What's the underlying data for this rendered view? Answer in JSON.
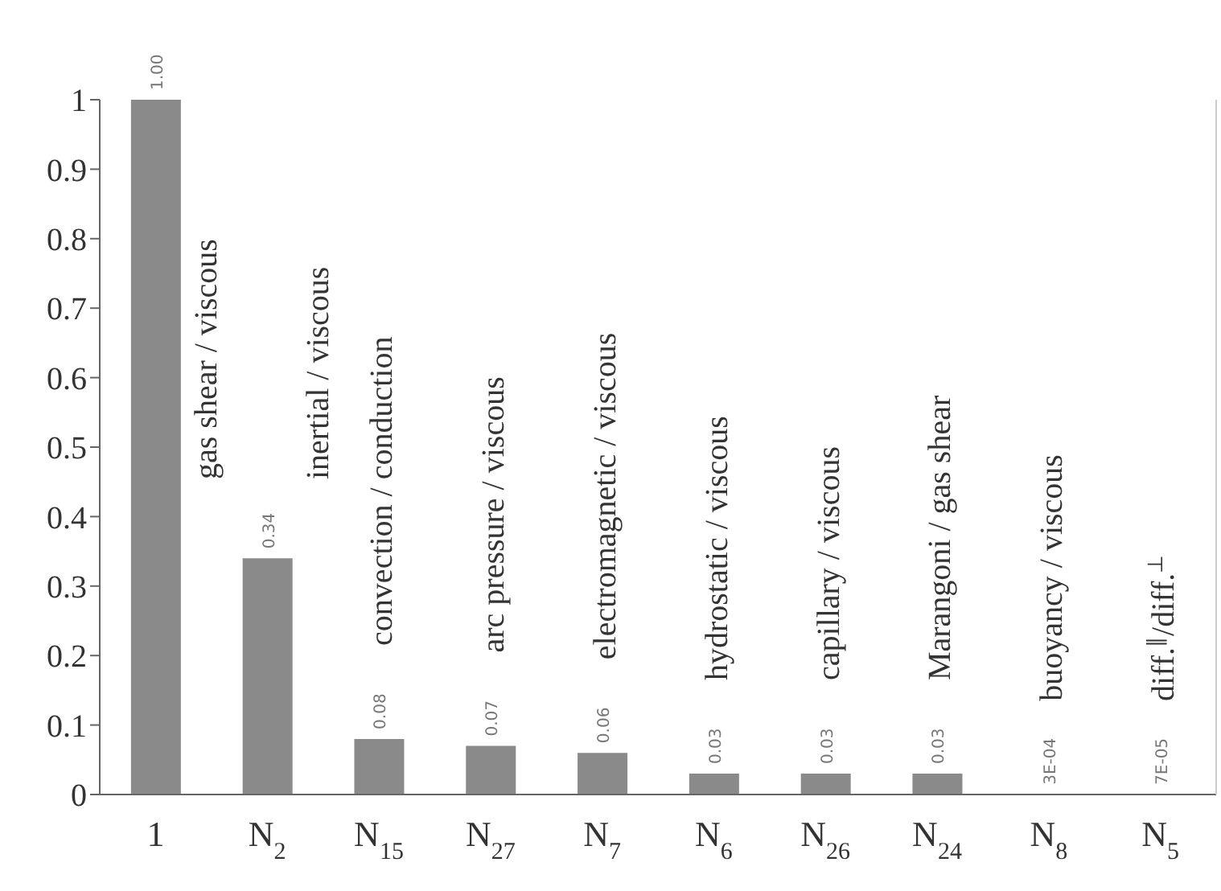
{
  "chart_data": {
    "type": "bar",
    "categories": [
      "1",
      "N$_{2}$",
      "N$_{15}$",
      "N$_{27}$",
      "N$_{7}$",
      "N$_{6}$",
      "N$_{26}$",
      "N$_{24}$",
      "N$_{8}$",
      "N$_{5}$"
    ],
    "values": [
      1,
      0.34,
      0.08,
      0.07,
      0.06,
      0.03,
      0.03,
      0.03,
      0.0003,
      7e-05
    ],
    "value_labels": [
      "1.00",
      "0.34",
      "0.08",
      "0.07",
      "0.06",
      "0.03",
      "0.03",
      "0.03",
      "3E-04",
      "7E-05"
    ],
    "color": "#8a8a8a",
    "ylim": [
      0,
      1
    ],
    "yticks": [
      0,
      0.1,
      0.2,
      0.3,
      0.4,
      0.5,
      0.6,
      0.7,
      0.8,
      0.9,
      1
    ],
    "grid": false,
    "legend": false,
    "annotations": [
      "gas shear / viscous",
      "inertial / viscous",
      "convection / conduction",
      "arc pressure / viscous",
      "electromagnetic / viscous",
      "hydrostatic / viscous",
      "capillary / viscous",
      "Marangoni / gas shear",
      "buoyancy / viscous",
      "diff.$^{∥}$/diff.$^{⊥}$"
    ]
  }
}
